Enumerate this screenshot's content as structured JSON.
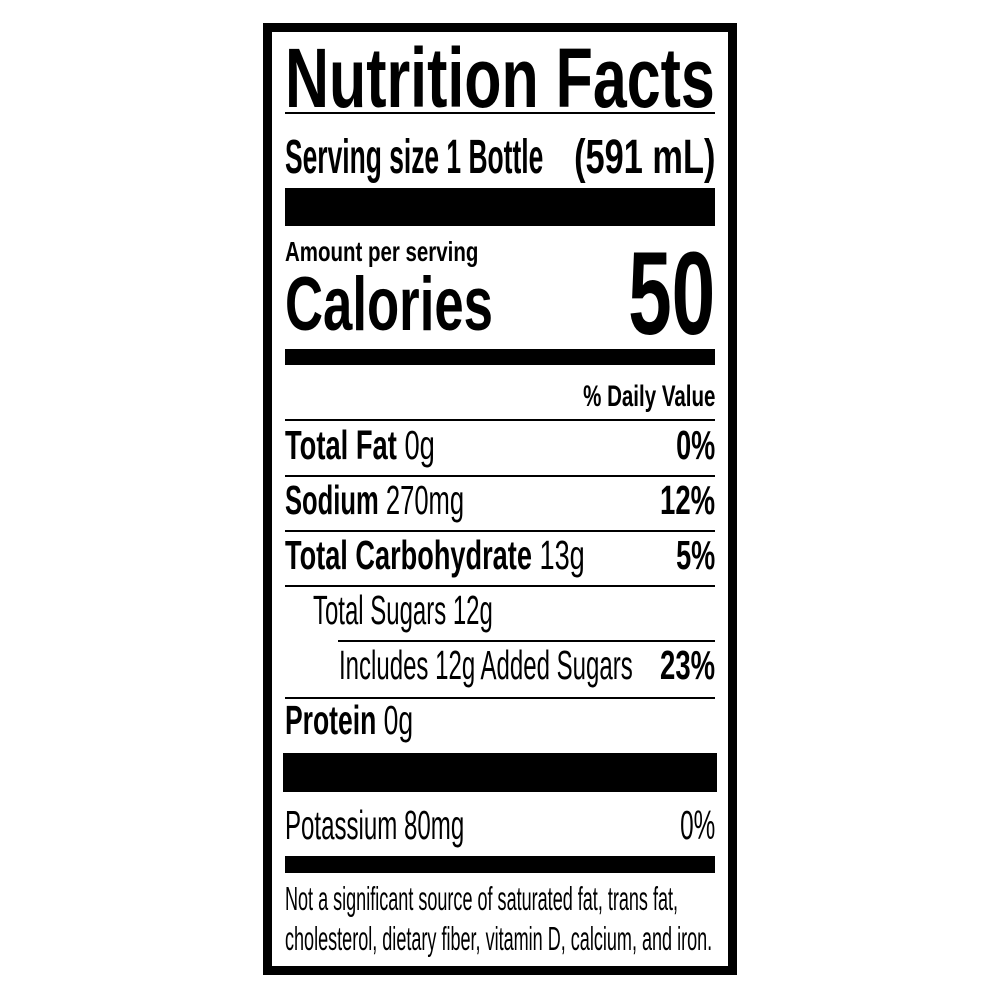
{
  "label": {
    "title": "Nutrition Facts",
    "serving_size_label": "Serving size 1 Bottle",
    "serving_size_amount": "(591 mL)",
    "amount_per_serving": "Amount per serving",
    "calories_label": "Calories",
    "calories_value": "50",
    "daily_value_header": "% Daily Value",
    "nutrients": [
      {
        "name": "Total Fat",
        "amount": "0g",
        "dv": "0%"
      },
      {
        "name": "Sodium",
        "amount": "270mg",
        "dv": "12%"
      },
      {
        "name": "Total Carbohydrate",
        "amount": "13g",
        "dv": "5%"
      },
      {
        "name": "Total Sugars 12g",
        "amount": "",
        "dv": ""
      },
      {
        "name": "Includes 12g Added Sugars",
        "amount": "",
        "dv": "23%"
      },
      {
        "name": "Protein",
        "amount": "0g",
        "dv": ""
      },
      {
        "name": "Potassium 80mg",
        "amount": "",
        "dv": "0%"
      }
    ],
    "footnote_line1": "Not a significant source of saturated fat, trans fat,",
    "footnote_line2": "cholesterol, dietary fiber, vitamin D, calcium, and iron."
  }
}
